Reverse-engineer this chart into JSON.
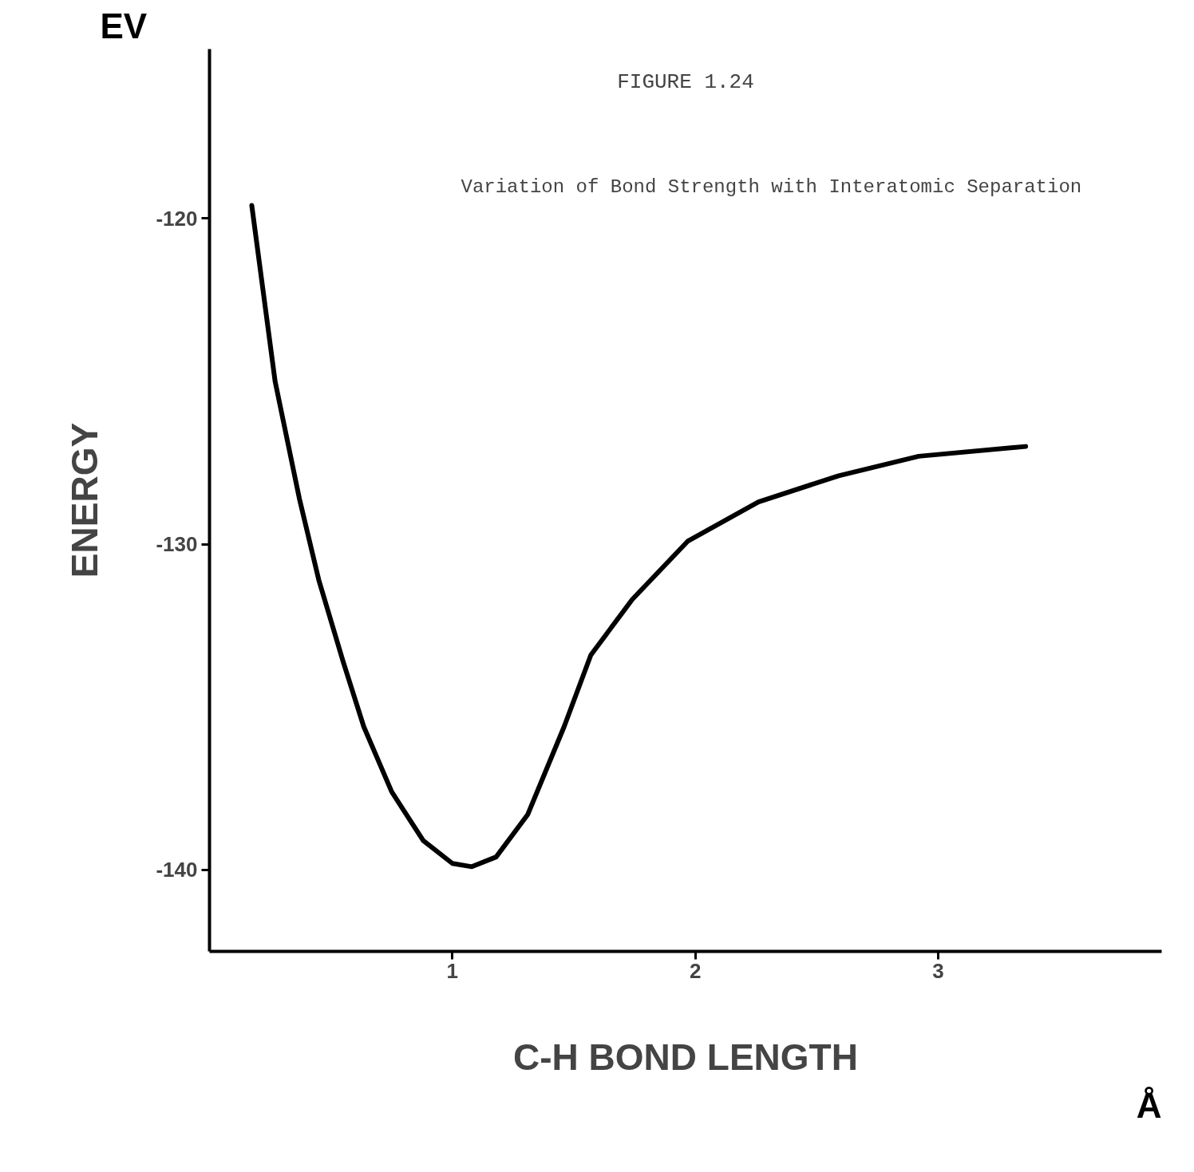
{
  "chart_data": {
    "type": "line",
    "title": "FIGURE 1.24",
    "subtitle": "Variation of Bond Strength with Interatomic Separation",
    "xlabel": "C-H BOND LENGTH",
    "ylabel": "ENERGY",
    "annotations": [
      "EV",
      "Å"
    ],
    "x": [
      0.174,
      0.27,
      0.37,
      0.45,
      0.55,
      0.635,
      0.75,
      0.88,
      1.0,
      1.08,
      1.18,
      1.31,
      1.46,
      1.57,
      1.74,
      1.97,
      2.26,
      2.59,
      2.92,
      3.36
    ],
    "series": [
      {
        "color": "#000000",
        "values": [
          -119.6,
          -125.0,
          -128.6,
          -131.1,
          -133.6,
          -135.6,
          -137.6,
          -139.1,
          -139.8,
          -139.9,
          -139.6,
          -138.3,
          -135.6,
          -133.4,
          -131.7,
          -129.9,
          -128.7,
          -127.9,
          -127.3,
          -127.0
        ]
      }
    ],
    "xlim": [
      0,
      3.92
    ],
    "ylim": [
      -142.5,
      -114.8
    ],
    "xticks": [
      1,
      2,
      3
    ],
    "yticks": [
      -120,
      -130,
      -140
    ],
    "grid": false
  }
}
